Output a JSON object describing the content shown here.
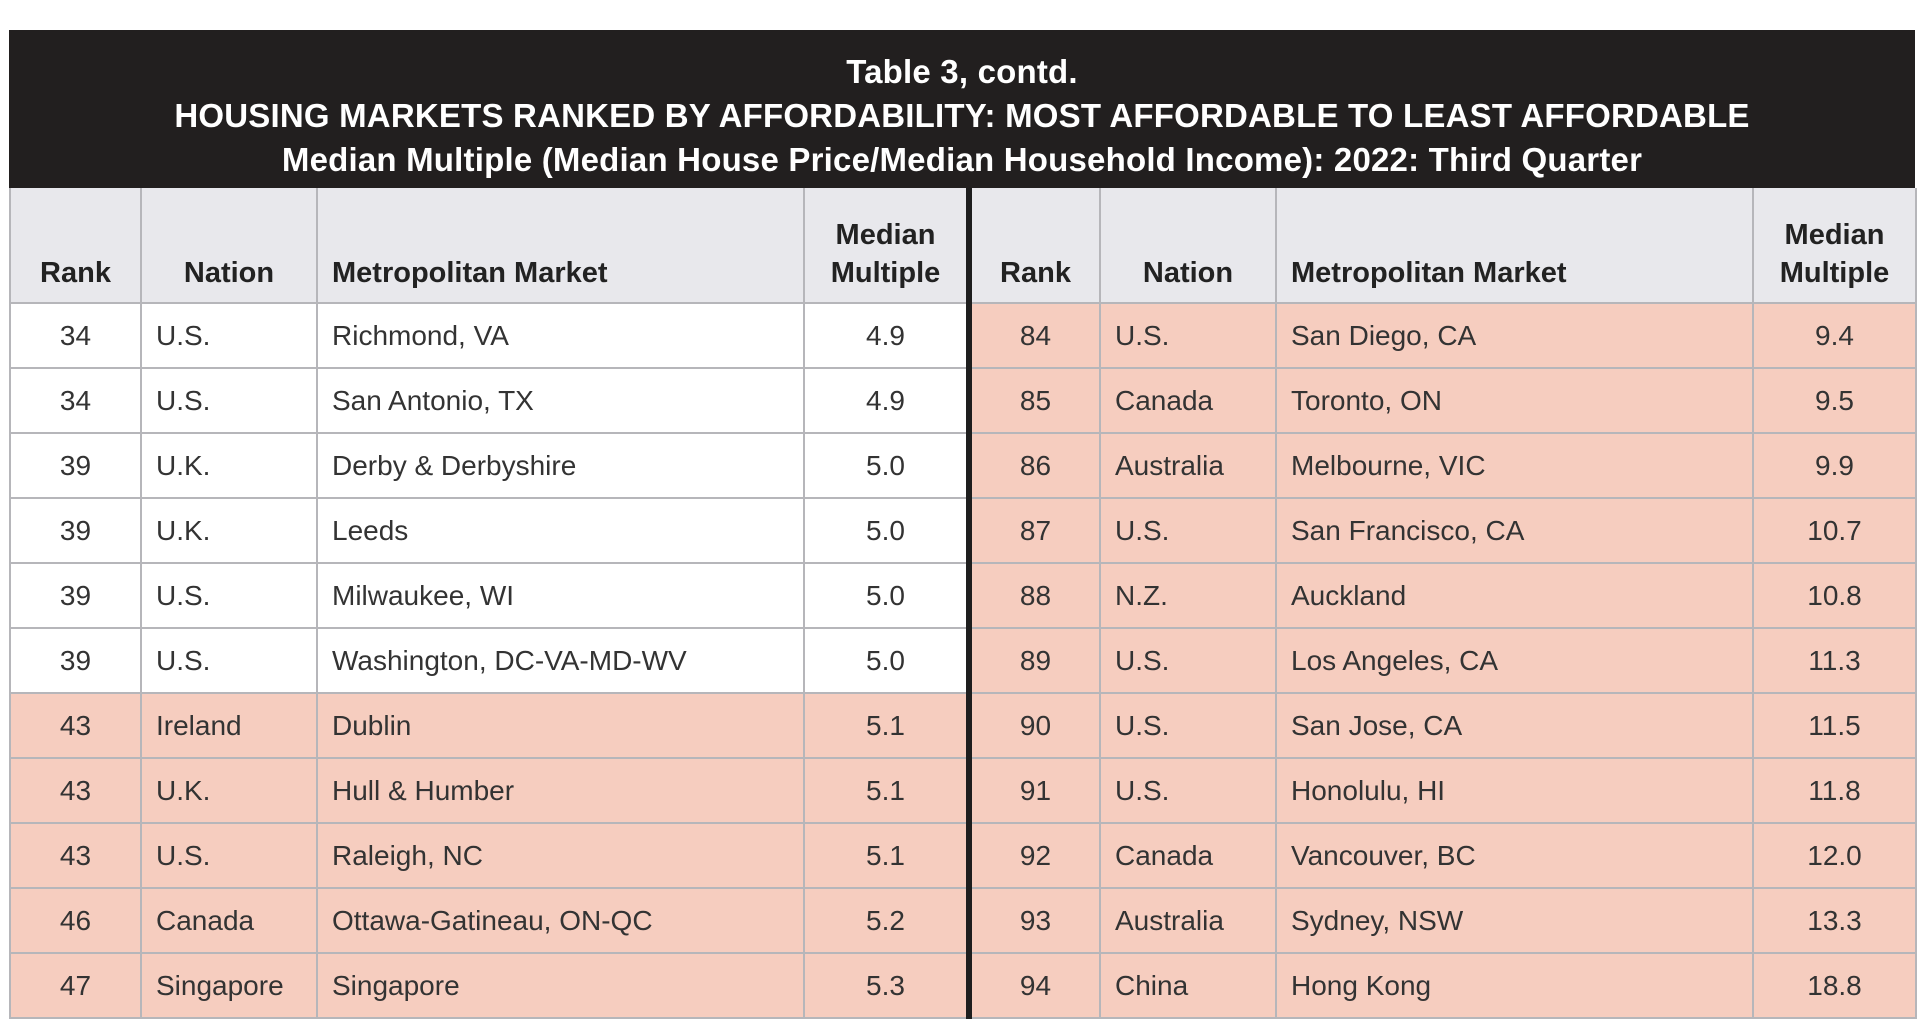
{
  "title": {
    "line1": "Table 3, contd.",
    "line2": "HOUSING MARKETS RANKED BY AFFORDABILITY: MOST AFFORDABLE TO LEAST AFFORDABLE",
    "line3": "Median Multiple (Median House Price/Median Household Income): 2022: Third Quarter"
  },
  "headers": {
    "rank": "Rank",
    "nation": "Nation",
    "market": "Metropolitan Market",
    "multiple_line1": "Median",
    "multiple_line2": "Multiple"
  },
  "colors": {
    "highlight": "#f6cdbf",
    "header_bg": "#221f1f",
    "column_header_bg": "#e8e8ec"
  },
  "left_rows": [
    {
      "rank": "34",
      "nation": "U.S.",
      "market": "Richmond, VA",
      "multiple": "4.9",
      "highlighted": false
    },
    {
      "rank": "34",
      "nation": "U.S.",
      "market": "San Antonio, TX",
      "multiple": "4.9",
      "highlighted": false
    },
    {
      "rank": "39",
      "nation": "U.K.",
      "market": "Derby & Derbyshire",
      "multiple": "5.0",
      "highlighted": false
    },
    {
      "rank": "39",
      "nation": "U.K.",
      "market": "Leeds",
      "multiple": "5.0",
      "highlighted": false
    },
    {
      "rank": "39",
      "nation": "U.S.",
      "market": "Milwaukee, WI",
      "multiple": "5.0",
      "highlighted": false
    },
    {
      "rank": "39",
      "nation": "U.S.",
      "market": "Washington, DC-VA-MD-WV",
      "multiple": "5.0",
      "highlighted": false
    },
    {
      "rank": "43",
      "nation": "Ireland",
      "market": "Dublin",
      "multiple": "5.1",
      "highlighted": true
    },
    {
      "rank": "43",
      "nation": "U.K.",
      "market": "Hull & Humber",
      "multiple": "5.1",
      "highlighted": true
    },
    {
      "rank": "43",
      "nation": "U.S.",
      "market": "Raleigh, NC",
      "multiple": "5.1",
      "highlighted": true
    },
    {
      "rank": "46",
      "nation": "Canada",
      "market": "Ottawa-Gatineau, ON-QC",
      "multiple": "5.2",
      "highlighted": true
    },
    {
      "rank": "47",
      "nation": "Singapore",
      "market": "Singapore",
      "multiple": "5.3",
      "highlighted": true
    }
  ],
  "right_rows": [
    {
      "rank": "84",
      "nation": "U.S.",
      "market": "San Diego, CA",
      "multiple": "9.4",
      "highlighted": true
    },
    {
      "rank": "85",
      "nation": "Canada",
      "market": "Toronto, ON",
      "multiple": "9.5",
      "highlighted": true
    },
    {
      "rank": "86",
      "nation": "Australia",
      "market": "Melbourne, VIC",
      "multiple": "9.9",
      "highlighted": true
    },
    {
      "rank": "87",
      "nation": "U.S.",
      "market": "San Francisco, CA",
      "multiple": "10.7",
      "highlighted": true
    },
    {
      "rank": "88",
      "nation": "N.Z.",
      "market": "Auckland",
      "multiple": "10.8",
      "highlighted": true
    },
    {
      "rank": "89",
      "nation": "U.S.",
      "market": "Los Angeles, CA",
      "multiple": "11.3",
      "highlighted": true
    },
    {
      "rank": "90",
      "nation": "U.S.",
      "market": "San Jose, CA",
      "multiple": "11.5",
      "highlighted": true
    },
    {
      "rank": "91",
      "nation": "U.S.",
      "market": "Honolulu, HI",
      "multiple": "11.8",
      "highlighted": true
    },
    {
      "rank": "92",
      "nation": "Canada",
      "market": "Vancouver, BC",
      "multiple": "12.0",
      "highlighted": true
    },
    {
      "rank": "93",
      "nation": "Australia",
      "market": "Sydney, NSW",
      "multiple": "13.3",
      "highlighted": true
    },
    {
      "rank": "94",
      "nation": "China",
      "market": "Hong Kong",
      "multiple": "18.8",
      "highlighted": true
    }
  ]
}
